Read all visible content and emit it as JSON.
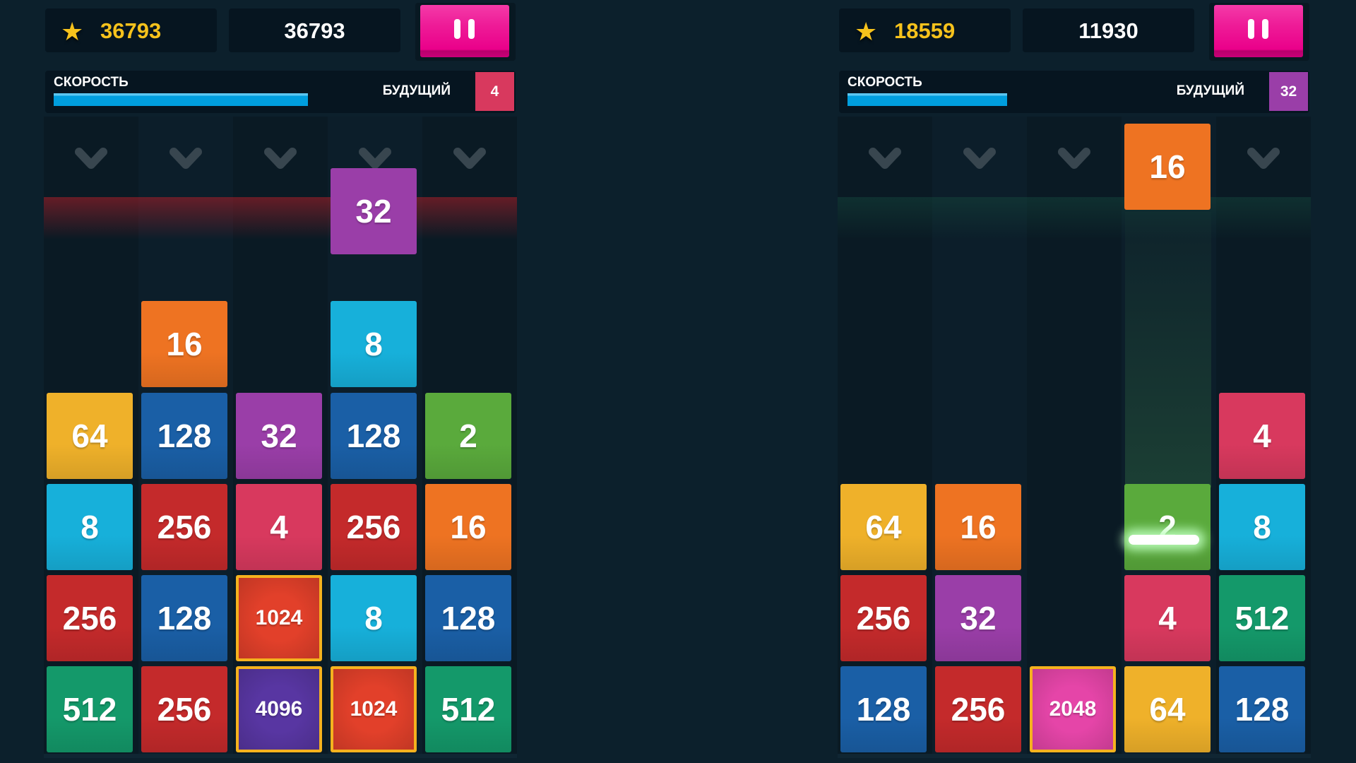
{
  "tile_colors": {
    "2": "#5aaa3c",
    "4": "#d8395e",
    "8": "#17b0da",
    "16": "#ee7322",
    "32": "#9a3ea8",
    "64": "#efb12a",
    "128": "#1a5fa6",
    "256": "#c42a2b",
    "512": "#14996a",
    "1024": "#e2402a",
    "2048": "#e545a8",
    "4096": "#5836a2"
  },
  "icons": {
    "star": "star-icon",
    "pause": "pause-icon",
    "drop": "chevron-down-icon"
  },
  "players": [
    {
      "best_score": "36793",
      "score": "36793",
      "speed_label": "СКОРОСТЬ",
      "speed_percent": 54,
      "next_label": "БУДУЩИЙ",
      "next_value": "4",
      "danger": "red",
      "falling": {
        "column": 4,
        "value": "32"
      },
      "grid": [
        [
          null,
          "16",
          null,
          "8",
          null
        ],
        [
          "64",
          "128",
          "32",
          "128",
          "2"
        ],
        [
          "8",
          "256",
          "4",
          "256",
          "16"
        ],
        [
          "256",
          "128",
          "1024",
          "8",
          "128"
        ],
        [
          "512",
          "256",
          "4096",
          "1024",
          "512"
        ]
      ]
    },
    {
      "best_score": "18559",
      "score": "11930",
      "speed_label": "СКОРОСТЬ",
      "speed_percent": 34,
      "next_label": "БУДУЩИЙ",
      "next_value": "32",
      "danger": "green",
      "falling": {
        "column": 4,
        "value": "16"
      },
      "grid": [
        [
          null,
          null,
          null,
          null,
          null
        ],
        [
          null,
          null,
          null,
          null,
          "4"
        ],
        [
          "64",
          "16",
          null,
          "2",
          "8"
        ],
        [
          "256",
          "32",
          null,
          "4",
          "512"
        ],
        [
          "128",
          "256",
          "2048",
          "64",
          "128"
        ]
      ]
    }
  ]
}
